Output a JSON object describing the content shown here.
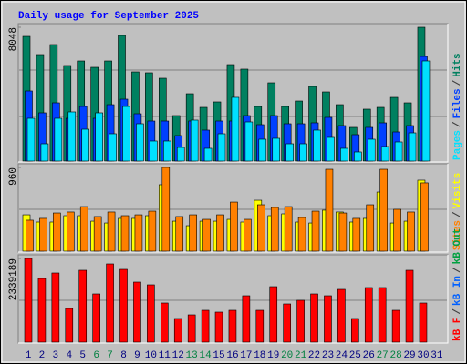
{
  "legend_separator": "/",
  "chart_data": [
    {
      "type": "bar",
      "title": "Daily usage for September 2025",
      "ylim": [
        0,
        8048
      ],
      "yticks": [
        8048
      ],
      "series": [
        {
          "name": "Hits",
          "color": "#008060",
          "values": [
            7500,
            6406,
            7008,
            5749,
            6022,
            5639,
            6022,
            7555,
            5365,
            5311,
            4982,
            2737,
            4051,
            3230,
            3559,
            5803,
            5530,
            3285,
            4708,
            3285,
            3613,
            4489,
            4161,
            3394,
            2026,
            3121,
            3230,
            3832,
            3504,
            8048,
            null
          ]
        },
        {
          "name": "Files",
          "color": "#0040ff",
          "values": [
            4216,
            2902,
            3504,
            2573,
            3285,
            2573,
            3394,
            3723,
            2847,
            2409,
            2409,
            1533,
            2409,
            1862,
            2409,
            2409,
            2737,
            2190,
            2737,
            2245,
            2245,
            2300,
            2628,
            2135,
            1588,
            2026,
            2300,
            1752,
            2135,
            6296,
            null
          ]
        },
        {
          "name": "Pages",
          "color": "#00e0ff",
          "values": [
            2573,
            1040,
            2573,
            2957,
            1916,
            2902,
            1643,
            3285,
            2245,
            1205,
            1205,
            821,
            2464,
            767,
            1643,
            3833,
            2354,
            1314,
            1369,
            1040,
            1040,
            1862,
            1424,
            767,
            548,
            1314,
            876,
            1150,
            1697,
            6023,
            null
          ]
        }
      ]
    },
    {
      "type": "bar",
      "ylim": [
        0,
        960
      ],
      "yticks": [
        960
      ],
      "series": [
        {
          "name": "Visits",
          "color": "#ffff00",
          "values": [
            417,
            334,
            334,
            407,
            407,
            344,
            323,
            376,
            376,
            407,
            762,
            344,
            292,
            344,
            344,
            365,
            334,
            584,
            407,
            428,
            334,
            323,
            470,
            449,
            334,
            376,
            678,
            323,
            344,
            814,
            null
          ]
        },
        {
          "name": "Sites",
          "color": "#ff8000",
          "values": [
            355,
            376,
            438,
            449,
            511,
            397,
            449,
            407,
            417,
            459,
            960,
            397,
            417,
            365,
            417,
            563,
            365,
            532,
            501,
            511,
            386,
            459,
            939,
            438,
            376,
            532,
            939,
            480,
            449,
            783,
            null
          ]
        }
      ]
    },
    {
      "type": "bar",
      "ylim": [
        0,
        2339189
      ],
      "yticks": [
        2339189
      ],
      "categories": [
        "1",
        "2",
        "3",
        "4",
        "5",
        "6",
        "7",
        "8",
        "9",
        "10",
        "11",
        "12",
        "13",
        "14",
        "15",
        "16",
        "17",
        "18",
        "19",
        "20",
        "21",
        "22",
        "23",
        "24",
        "25",
        "26",
        "27",
        "28",
        "29",
        "30",
        "31"
      ],
      "category_colors": [
        "#000080",
        "#000080",
        "#000080",
        "#000080",
        "#000080",
        "#008040",
        "#008040",
        "#000080",
        "#000080",
        "#000080",
        "#000080",
        "#000080",
        "#008040",
        "#008040",
        "#000080",
        "#000080",
        "#000080",
        "#000080",
        "#000080",
        "#008040",
        "#008040",
        "#000080",
        "#000080",
        "#000080",
        "#000080",
        "#000080",
        "#008040",
        "#008040",
        "#000080",
        "#000080",
        "#000080"
      ],
      "series": [
        {
          "name": "kB Out",
          "color": "#00a040",
          "values": [
            null,
            null,
            null,
            null,
            null,
            null,
            null,
            null,
            null,
            null,
            null,
            null,
            null,
            null,
            null,
            null,
            null,
            null,
            null,
            null,
            null,
            null,
            null,
            null,
            null,
            null,
            null,
            null,
            null,
            null,
            null
          ]
        },
        {
          "name": "kB In",
          "color": "#0060ff",
          "values": [
            null,
            null,
            null,
            null,
            null,
            null,
            null,
            null,
            null,
            null,
            null,
            null,
            null,
            null,
            null,
            null,
            null,
            null,
            null,
            null,
            null,
            null,
            null,
            null,
            null,
            null,
            null,
            null,
            null,
            null,
            null
          ]
        },
        {
          "name": "kB F",
          "color": "#ff0000",
          "values": [
            2339189,
            1779820,
            1932376,
            940762,
            2008654,
            1347578,
            2186636,
            2034080,
            1678116,
            1601838,
            1093318,
            661076,
            762780,
            889910,
            839058,
            889910,
            1296726,
            889910,
            1550986,
            1067892,
            1169596,
            1347578,
            1296726,
            1474708,
            661076,
            1525560,
            1525560,
            889910,
            2008654,
            1093318,
            null
          ]
        }
      ]
    }
  ]
}
